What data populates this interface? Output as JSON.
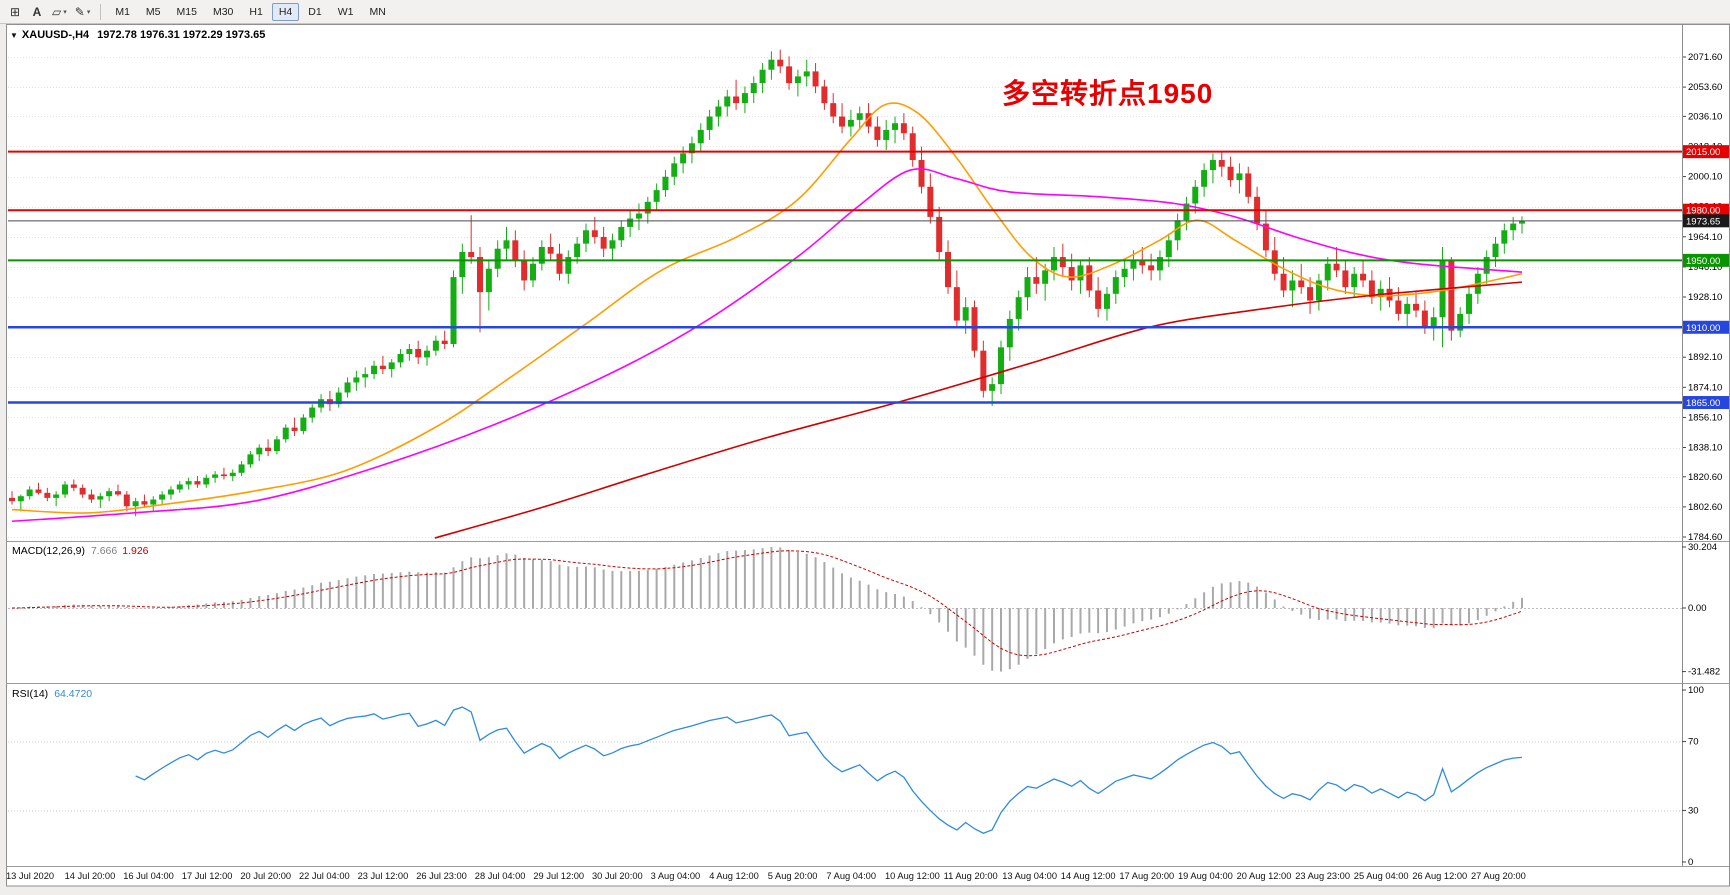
{
  "toolbar": {
    "tools": [
      {
        "name": "chart-mode",
        "glyph": "⊞",
        "caret": false
      },
      {
        "name": "text-tool",
        "glyph": "A",
        "caret": false
      },
      {
        "name": "objects-tool",
        "glyph": "▱",
        "caret": true
      },
      {
        "name": "draw-tool",
        "glyph": "✎",
        "caret": true
      }
    ],
    "timeframes": [
      "M1",
      "M5",
      "M15",
      "M30",
      "H1",
      "H4",
      "D1",
      "W1",
      "MN"
    ],
    "active_timeframe": "H4"
  },
  "chart": {
    "marker_glyph": "▼",
    "title": "XAUUSD-,H4",
    "ohlc": "1972.78 1976.31 1972.29 1973.65",
    "annotation": "多空转折点1950",
    "annotation_color": "#e60000",
    "levels": [
      {
        "value": 2015.0,
        "label": "2015.00",
        "color": "#e60000",
        "width": 2
      },
      {
        "value": 1980.0,
        "label": "1980.00",
        "color": "#e60000",
        "width": 2
      },
      {
        "value": 1950.0,
        "label": "1950.00",
        "color": "#0a9400",
        "width": 2
      },
      {
        "value": 1910.0,
        "label": "1910.00",
        "color": "#2746dd",
        "width": 2.5
      },
      {
        "value": 1865.0,
        "label": "1865.00",
        "color": "#2746dd",
        "width": 2.5
      }
    ],
    "current_price": {
      "value": 1973.65,
      "label": "1973.65",
      "line_color": "#4a4a4a",
      "label_bg": "#1a1a1a"
    }
  },
  "macd_panel": {
    "name": "MACD(12,26,9)",
    "value_main": "7.666",
    "value_signal": "1.926",
    "axis_labels": [
      "30.204",
      "0.00",
      "-31.482"
    ],
    "axis_max": 30.204,
    "axis_min": -31.482
  },
  "rsi_panel": {
    "name": "RSI(14)",
    "value": "64.4720",
    "axis_labels": [
      "100",
      "70",
      "30",
      "0"
    ],
    "levels": [
      70,
      30
    ]
  },
  "chart_data": {
    "type": "candlestick",
    "symbol": "XAUUSD",
    "timeframe": "H4",
    "title": "XAUUSD-,H4 1972.78 1976.31 1972.29 1973.65",
    "ylim": [
      1784.6,
      2071.6
    ],
    "grid": true,
    "colors": {
      "up": "#14ad14",
      "down": "#e02c2c"
    },
    "y_ticks": [
      "2071.60",
      "2053.60",
      "2036.10",
      "2018.10",
      "2000.10",
      "1982.10",
      "1964.10",
      "1946.10",
      "1928.10",
      "1910.10",
      "1892.10",
      "1874.10",
      "1856.10",
      "1838.10",
      "1820.60",
      "1802.60",
      "1784.60"
    ],
    "x_labels": [
      "13 Jul 2020",
      "14 Jul 20:00",
      "16 Jul 04:00",
      "17 Jul 12:00",
      "20 Jul 20:00",
      "22 Jul 04:00",
      "23 Jul 12:00",
      "26 Jul 23:00",
      "28 Jul 04:00",
      "29 Jul 12:00",
      "30 Jul 20:00",
      "3 Aug 04:00",
      "4 Aug 12:00",
      "5 Aug 20:00",
      "7 Aug 04:00",
      "10 Aug 12:00",
      "11 Aug 20:00",
      "13 Aug 04:00",
      "14 Aug 12:00",
      "17 Aug 20:00",
      "19 Aug 04:00",
      "20 Aug 12:00",
      "23 Aug 23:00",
      "25 Aug 04:00",
      "26 Aug 12:00",
      "27 Aug 20:00"
    ],
    "candles": [
      [
        1808,
        1812,
        1804,
        1806
      ],
      [
        1806,
        1810,
        1800,
        1809
      ],
      [
        1809,
        1815,
        1807,
        1813
      ],
      [
        1813,
        1817,
        1810,
        1811
      ],
      [
        1811,
        1814,
        1806,
        1808
      ],
      [
        1808,
        1812,
        1803,
        1810
      ],
      [
        1810,
        1818,
        1808,
        1816
      ],
      [
        1816,
        1819,
        1812,
        1814
      ],
      [
        1814,
        1816,
        1808,
        1810
      ],
      [
        1810,
        1813,
        1805,
        1807
      ],
      [
        1807,
        1811,
        1802,
        1809
      ],
      [
        1809,
        1814,
        1806,
        1812
      ],
      [
        1812,
        1816,
        1809,
        1810
      ],
      [
        1810,
        1812,
        1800,
        1803
      ],
      [
        1803,
        1808,
        1797,
        1806
      ],
      [
        1806,
        1810,
        1802,
        1804
      ],
      [
        1804,
        1809,
        1800,
        1807
      ],
      [
        1807,
        1812,
        1804,
        1810
      ],
      [
        1810,
        1815,
        1807,
        1813
      ],
      [
        1813,
        1818,
        1811,
        1816
      ],
      [
        1816,
        1820,
        1813,
        1818
      ],
      [
        1818,
        1821,
        1814,
        1816
      ],
      [
        1816,
        1822,
        1814,
        1820
      ],
      [
        1820,
        1824,
        1817,
        1822
      ],
      [
        1822,
        1826,
        1819,
        1821
      ],
      [
        1821,
        1825,
        1818,
        1823
      ],
      [
        1823,
        1830,
        1821,
        1828
      ],
      [
        1828,
        1836,
        1826,
        1834
      ],
      [
        1834,
        1840,
        1830,
        1838
      ],
      [
        1838,
        1843,
        1833,
        1836
      ],
      [
        1836,
        1845,
        1834,
        1843
      ],
      [
        1843,
        1852,
        1841,
        1850
      ],
      [
        1850,
        1856,
        1845,
        1848
      ],
      [
        1848,
        1858,
        1846,
        1856
      ],
      [
        1856,
        1864,
        1853,
        1862
      ],
      [
        1862,
        1870,
        1859,
        1867
      ],
      [
        1867,
        1872,
        1860,
        1864
      ],
      [
        1864,
        1874,
        1862,
        1871
      ],
      [
        1871,
        1880,
        1868,
        1877
      ],
      [
        1877,
        1884,
        1872,
        1880
      ],
      [
        1880,
        1886,
        1874,
        1882
      ],
      [
        1882,
        1890,
        1879,
        1887
      ],
      [
        1887,
        1893,
        1882,
        1885
      ],
      [
        1885,
        1891,
        1880,
        1889
      ],
      [
        1889,
        1897,
        1886,
        1894
      ],
      [
        1894,
        1900,
        1890,
        1897
      ],
      [
        1897,
        1902,
        1888,
        1892
      ],
      [
        1892,
        1899,
        1887,
        1896
      ],
      [
        1896,
        1905,
        1893,
        1902
      ],
      [
        1902,
        1908,
        1897,
        1900
      ],
      [
        1900,
        1944,
        1898,
        1940
      ],
      [
        1940,
        1960,
        1930,
        1955
      ],
      [
        1955,
        1977,
        1948,
        1952
      ],
      [
        1952,
        1958,
        1907,
        1931
      ],
      [
        1931,
        1950,
        1920,
        1945
      ],
      [
        1945,
        1962,
        1940,
        1957
      ],
      [
        1957,
        1970,
        1950,
        1962
      ],
      [
        1962,
        1968,
        1946,
        1950
      ],
      [
        1950,
        1956,
        1932,
        1938
      ],
      [
        1938,
        1952,
        1934,
        1948
      ],
      [
        1948,
        1962,
        1944,
        1958
      ],
      [
        1958,
        1966,
        1950,
        1954
      ],
      [
        1954,
        1960,
        1938,
        1942
      ],
      [
        1942,
        1956,
        1936,
        1952
      ],
      [
        1952,
        1964,
        1948,
        1960
      ],
      [
        1960,
        1972,
        1955,
        1968
      ],
      [
        1968,
        1976,
        1960,
        1964
      ],
      [
        1964,
        1970,
        1952,
        1957
      ],
      [
        1957,
        1966,
        1950,
        1962
      ],
      [
        1962,
        1974,
        1958,
        1970
      ],
      [
        1970,
        1980,
        1964,
        1975
      ],
      [
        1975,
        1984,
        1968,
        1978
      ],
      [
        1978,
        1988,
        1972,
        1985
      ],
      [
        1985,
        1996,
        1980,
        1992
      ],
      [
        1992,
        2004,
        1988,
        2000
      ],
      [
        2000,
        2012,
        1995,
        2008
      ],
      [
        2008,
        2018,
        2002,
        2014
      ],
      [
        2014,
        2024,
        2008,
        2020
      ],
      [
        2020,
        2032,
        2015,
        2028
      ],
      [
        2028,
        2040,
        2022,
        2036
      ],
      [
        2036,
        2046,
        2030,
        2042
      ],
      [
        2042,
        2052,
        2036,
        2048
      ],
      [
        2048,
        2058,
        2040,
        2044
      ],
      [
        2044,
        2054,
        2038,
        2050
      ],
      [
        2050,
        2060,
        2044,
        2056
      ],
      [
        2056,
        2068,
        2050,
        2064
      ],
      [
        2064,
        2075,
        2058,
        2070
      ],
      [
        2070,
        2076,
        2062,
        2066
      ],
      [
        2066,
        2072,
        2052,
        2056
      ],
      [
        2056,
        2064,
        2048,
        2060
      ],
      [
        2060,
        2070,
        2054,
        2063
      ],
      [
        2063,
        2068,
        2050,
        2054
      ],
      [
        2054,
        2058,
        2040,
        2044
      ],
      [
        2044,
        2050,
        2032,
        2036
      ],
      [
        2036,
        2044,
        2026,
        2030
      ],
      [
        2030,
        2040,
        2024,
        2034
      ],
      [
        2034,
        2042,
        2028,
        2038
      ],
      [
        2038,
        2044,
        2026,
        2030
      ],
      [
        2030,
        2036,
        2018,
        2022
      ],
      [
        2022,
        2034,
        2016,
        2028
      ],
      [
        2028,
        2036,
        2020,
        2032
      ],
      [
        2032,
        2038,
        2022,
        2026
      ],
      [
        2026,
        2030,
        2006,
        2010
      ],
      [
        2010,
        2018,
        1990,
        1994
      ],
      [
        1994,
        2002,
        1972,
        1976
      ],
      [
        1976,
        1982,
        1950,
        1955
      ],
      [
        1955,
        1962,
        1930,
        1934
      ],
      [
        1934,
        1944,
        1910,
        1914
      ],
      [
        1914,
        1928,
        1906,
        1922
      ],
      [
        1922,
        1926,
        1892,
        1896
      ],
      [
        1896,
        1902,
        1868,
        1872
      ],
      [
        1872,
        1880,
        1863,
        1876
      ],
      [
        1876,
        1902,
        1870,
        1898
      ],
      [
        1898,
        1920,
        1890,
        1915
      ],
      [
        1915,
        1932,
        1908,
        1928
      ],
      [
        1928,
        1946,
        1920,
        1940
      ],
      [
        1940,
        1952,
        1930,
        1936
      ],
      [
        1936,
        1948,
        1926,
        1944
      ],
      [
        1944,
        1958,
        1938,
        1952
      ],
      [
        1952,
        1960,
        1940,
        1946
      ],
      [
        1946,
        1954,
        1932,
        1938
      ],
      [
        1938,
        1950,
        1930,
        1947
      ],
      [
        1947,
        1952,
        1928,
        1932
      ],
      [
        1932,
        1940,
        1916,
        1921
      ],
      [
        1921,
        1934,
        1914,
        1930
      ],
      [
        1930,
        1944,
        1924,
        1940
      ],
      [
        1940,
        1950,
        1934,
        1945
      ],
      [
        1945,
        1956,
        1938,
        1950
      ],
      [
        1950,
        1958,
        1942,
        1947
      ],
      [
        1947,
        1954,
        1938,
        1944
      ],
      [
        1944,
        1956,
        1938,
        1952
      ],
      [
        1952,
        1966,
        1946,
        1962
      ],
      [
        1962,
        1978,
        1956,
        1974
      ],
      [
        1974,
        1988,
        1968,
        1984
      ],
      [
        1984,
        1998,
        1978,
        1994
      ],
      [
        1994,
        2008,
        1988,
        2004
      ],
      [
        2004,
        2014,
        1996,
        2010
      ],
      [
        2010,
        2015,
        2000,
        2006
      ],
      [
        2006,
        2012,
        1994,
        1998
      ],
      [
        1998,
        2008,
        1990,
        2002
      ],
      [
        2002,
        2006,
        1984,
        1988
      ],
      [
        1988,
        1994,
        1968,
        1972
      ],
      [
        1972,
        1980,
        1952,
        1956
      ],
      [
        1956,
        1964,
        1938,
        1942
      ],
      [
        1942,
        1952,
        1928,
        1932
      ],
      [
        1932,
        1944,
        1922,
        1938
      ],
      [
        1938,
        1948,
        1930,
        1934
      ],
      [
        1934,
        1940,
        1918,
        1926
      ],
      [
        1926,
        1942,
        1920,
        1938
      ],
      [
        1938,
        1952,
        1932,
        1948
      ],
      [
        1948,
        1958,
        1940,
        1944
      ],
      [
        1944,
        1950,
        1930,
        1934
      ],
      [
        1934,
        1946,
        1928,
        1942
      ],
      [
        1942,
        1950,
        1934,
        1938
      ],
      [
        1938,
        1944,
        1924,
        1928
      ],
      [
        1928,
        1938,
        1920,
        1933
      ],
      [
        1933,
        1940,
        1922,
        1926
      ],
      [
        1926,
        1934,
        1914,
        1918
      ],
      [
        1918,
        1928,
        1910,
        1924
      ],
      [
        1924,
        1932,
        1916,
        1920
      ],
      [
        1920,
        1926,
        1906,
        1910
      ],
      [
        1910,
        1922,
        1902,
        1916
      ],
      [
        1916,
        1958,
        1898,
        1950
      ],
      [
        1950,
        1952,
        1902,
        1908
      ],
      [
        1908,
        1922,
        1904,
        1918
      ],
      [
        1918,
        1934,
        1912,
        1930
      ],
      [
        1930,
        1946,
        1924,
        1942
      ],
      [
        1942,
        1956,
        1936,
        1952
      ],
      [
        1952,
        1964,
        1946,
        1960
      ],
      [
        1960,
        1972,
        1954,
        1968
      ],
      [
        1968,
        1976,
        1962,
        1972
      ],
      [
        1972,
        1976.31,
        1966,
        1973.65
      ]
    ],
    "moving_averages": [
      {
        "name": "fast-ma",
        "color": "#ff9d00",
        "points": [
          [
            0,
            1801
          ],
          [
            0.05,
            1799
          ],
          [
            0.1,
            1804
          ],
          [
            0.16,
            1812
          ],
          [
            0.22,
            1824
          ],
          [
            0.28,
            1850
          ],
          [
            0.33,
            1880
          ],
          [
            0.38,
            1912
          ],
          [
            0.43,
            1944
          ],
          [
            0.48,
            1964
          ],
          [
            0.52,
            1986
          ],
          [
            0.555,
            2022
          ],
          [
            0.578,
            2043
          ],
          [
            0.6,
            2038
          ],
          [
            0.625,
            2012
          ],
          [
            0.65,
            1980
          ],
          [
            0.675,
            1952
          ],
          [
            0.7,
            1940
          ],
          [
            0.73,
            1948
          ],
          [
            0.76,
            1962
          ],
          [
            0.785,
            1974
          ],
          [
            0.81,
            1962
          ],
          [
            0.84,
            1946
          ],
          [
            0.87,
            1934
          ],
          [
            0.9,
            1929
          ],
          [
            0.93,
            1930
          ],
          [
            0.96,
            1934
          ],
          [
            1,
            1942
          ]
        ]
      },
      {
        "name": "mid-ma",
        "color": "#ff00ff",
        "points": [
          [
            0,
            1794
          ],
          [
            0.08,
            1799
          ],
          [
            0.16,
            1806
          ],
          [
            0.24,
            1826
          ],
          [
            0.32,
            1852
          ],
          [
            0.4,
            1884
          ],
          [
            0.46,
            1914
          ],
          [
            0.52,
            1952
          ],
          [
            0.56,
            1982
          ],
          [
            0.595,
            2004
          ],
          [
            0.625,
            1999
          ],
          [
            0.66,
            1991
          ],
          [
            0.72,
            1988
          ],
          [
            0.77,
            1984
          ],
          [
            0.81,
            1976
          ],
          [
            0.85,
            1964
          ],
          [
            0.89,
            1954
          ],
          [
            0.93,
            1948
          ],
          [
            1,
            1943
          ]
        ]
      },
      {
        "name": "slow-ma",
        "color": "#d40000",
        "points": [
          [
            0.28,
            1784
          ],
          [
            0.35,
            1802
          ],
          [
            0.42,
            1822
          ],
          [
            0.5,
            1844
          ],
          [
            0.59,
            1866
          ],
          [
            0.68,
            1890
          ],
          [
            0.753,
            1910
          ],
          [
            0.82,
            1920
          ],
          [
            0.9,
            1929
          ],
          [
            1,
            1937
          ]
        ]
      }
    ],
    "indicators": {
      "macd": {
        "params": [
          12,
          26,
          9
        ],
        "last_main": 7.666,
        "last_signal": 1.926,
        "axis": [
          30.204,
          0,
          -31.482
        ],
        "histogram_color": "#a9a9a9",
        "signal_color": "#cc0000"
      },
      "rsi": {
        "period": 14,
        "last_value": 64.472,
        "levels": [
          70,
          30
        ],
        "line_color": "#2f8be0",
        "range": [
          0,
          100
        ]
      }
    }
  }
}
